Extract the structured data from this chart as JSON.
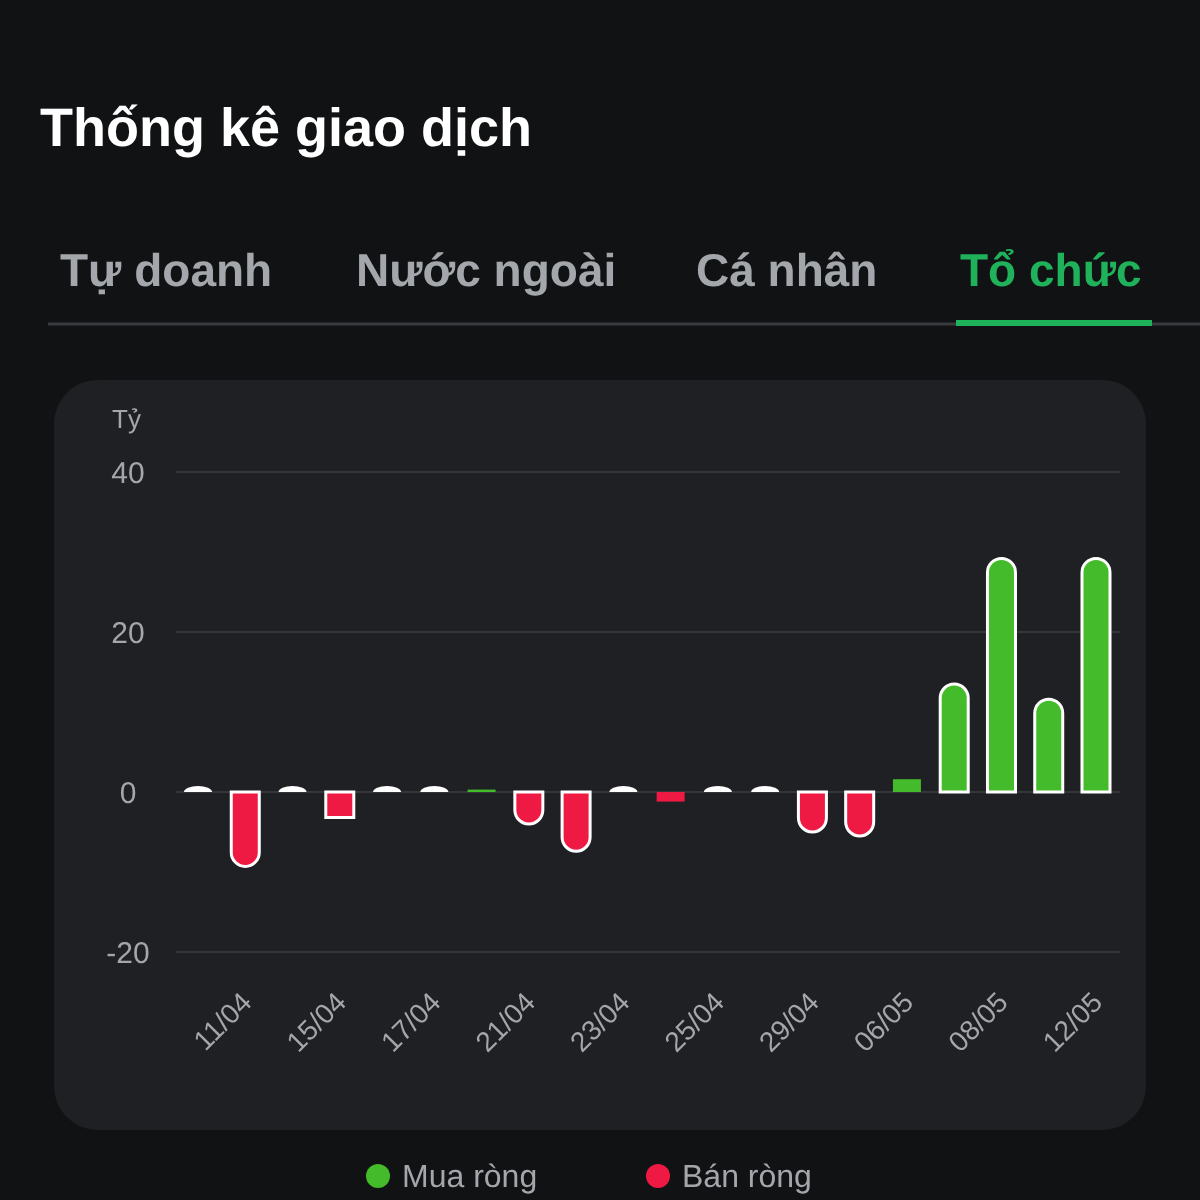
{
  "chart_data": {
    "type": "bar",
    "title": "Thống kê giao dịch",
    "annotations": [
      "Tự doanh",
      "Nước ngoài",
      "Cá nhân",
      "Tổ chức"
    ],
    "ylabel": "Tỷ",
    "categories": [
      null,
      "11/04",
      null,
      "15/04",
      null,
      "17/04",
      null,
      "21/04",
      null,
      "23/04",
      null,
      "25/04",
      null,
      "29/04",
      null,
      "06/05",
      null,
      "08/05",
      null,
      "12/05"
    ],
    "series": [
      {
        "name": "Mua ròng",
        "color": "#44bb2a",
        "values": [
          0,
          null,
          0,
          null,
          0,
          0,
          0.3,
          null,
          null,
          0,
          null,
          0,
          0,
          null,
          null,
          1.6,
          13.5,
          29.2,
          11.6,
          29.2
        ]
      },
      {
        "name": "Bán ròng",
        "color": "#ee1a43",
        "values": [
          null,
          -9.3,
          null,
          -3.2,
          null,
          null,
          null,
          -4,
          -7.4,
          null,
          -1.2,
          null,
          null,
          -5,
          -5.5,
          null,
          null,
          null,
          null,
          null
        ]
      }
    ],
    "ylim": [
      -20,
      40
    ],
    "yticks": [
      -20,
      0,
      20,
      40
    ],
    "grid": "y",
    "legend": "bottom"
  }
}
